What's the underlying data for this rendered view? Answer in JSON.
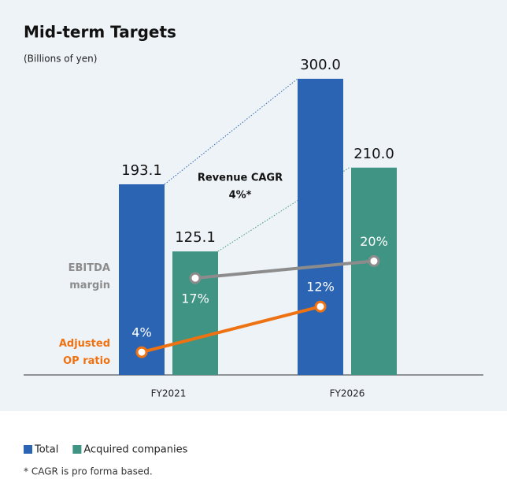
{
  "chart_data": {
    "type": "bar",
    "title": "Mid-term Targets",
    "subtitle": "(Billions of yen)",
    "categories": [
      "FY2021",
      "FY2026"
    ],
    "ylim": [
      0,
      300
    ],
    "y2lim": [
      0,
      52
    ],
    "series": [
      {
        "name": "Total",
        "color": "#2b64b3",
        "values": [
          193.1,
          300.0
        ],
        "value_labels": [
          "193.1",
          "300.0"
        ]
      },
      {
        "name": "Acquired companies",
        "color": "#3f9484",
        "values": [
          125.1,
          210.0
        ],
        "value_labels": [
          "125.1",
          "210.0"
        ]
      },
      {
        "name": "EBITDA margin",
        "type": "line",
        "axis": "y2",
        "color": "#8c8c8c",
        "values": [
          17,
          20
        ],
        "value_labels": [
          "17%",
          "20%"
        ]
      },
      {
        "name": "Adjusted OP ratio",
        "type": "line",
        "axis": "y2",
        "color": "#ee7212",
        "values": [
          4,
          12
        ],
        "value_labels": [
          "4%",
          "12%"
        ]
      }
    ],
    "annotation": [
      "Revenue CAGR",
      "4%*"
    ],
    "footnote": "* CAGR is pro forma based."
  }
}
